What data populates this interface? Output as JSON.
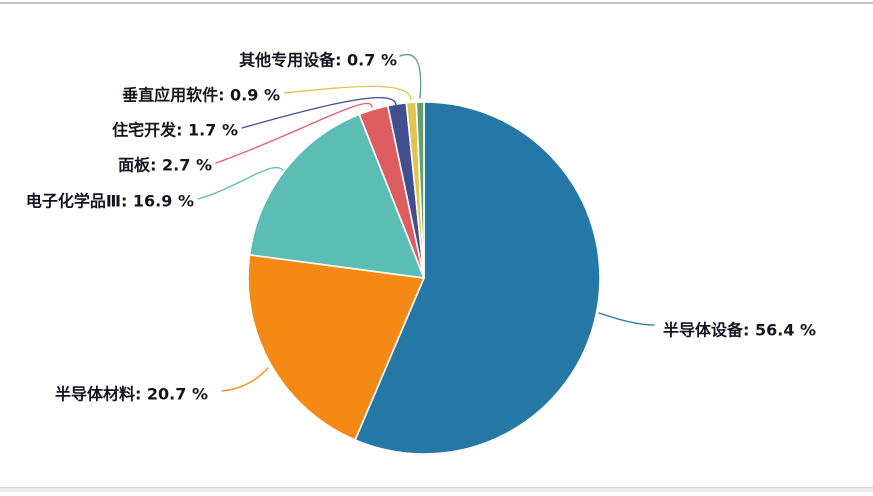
{
  "figure": {
    "kind": "pie-chart-screenshot",
    "background_color": "#ffffff",
    "top_divider_color": "#c4c4c4",
    "bottom_bar_color": "#ececec",
    "label_text_color": "#15151f"
  },
  "chart_data": {
    "type": "pie",
    "title": "",
    "unit": "%",
    "start_angle_deg": 0,
    "direction": "clockwise",
    "total": 100.0,
    "legend_position": "none",
    "labels_style": "callout-leader-lines",
    "slices": [
      {
        "label": "半导体设备",
        "value": 56.4,
        "display": "半导体设备: 56.4 %",
        "color": "#2577a6"
      },
      {
        "label": "半导体材料",
        "value": 20.7,
        "display": "半导体材料: 20.7 %",
        "color": "#f48915"
      },
      {
        "label": "电子化学品Ⅲ",
        "value": 16.9,
        "display": "电子化学品Ⅲ: 16.9 %",
        "color": "#5cbdb5"
      },
      {
        "label": "面板",
        "value": 2.7,
        "display": "面板: 2.7 %",
        "color": "#de5d60"
      },
      {
        "label": "住宅开发",
        "value": 1.7,
        "display": "住宅开发: 1.7 %",
        "color": "#424f8e"
      },
      {
        "label": "垂直应用软件",
        "value": 0.9,
        "display": "垂直应用软件: 0.9 %",
        "color": "#e0c44f"
      },
      {
        "label": "其他专用设备",
        "value": 0.7,
        "display": "其他专用设备: 0.7 %",
        "color": "#619f6e"
      }
    ]
  }
}
